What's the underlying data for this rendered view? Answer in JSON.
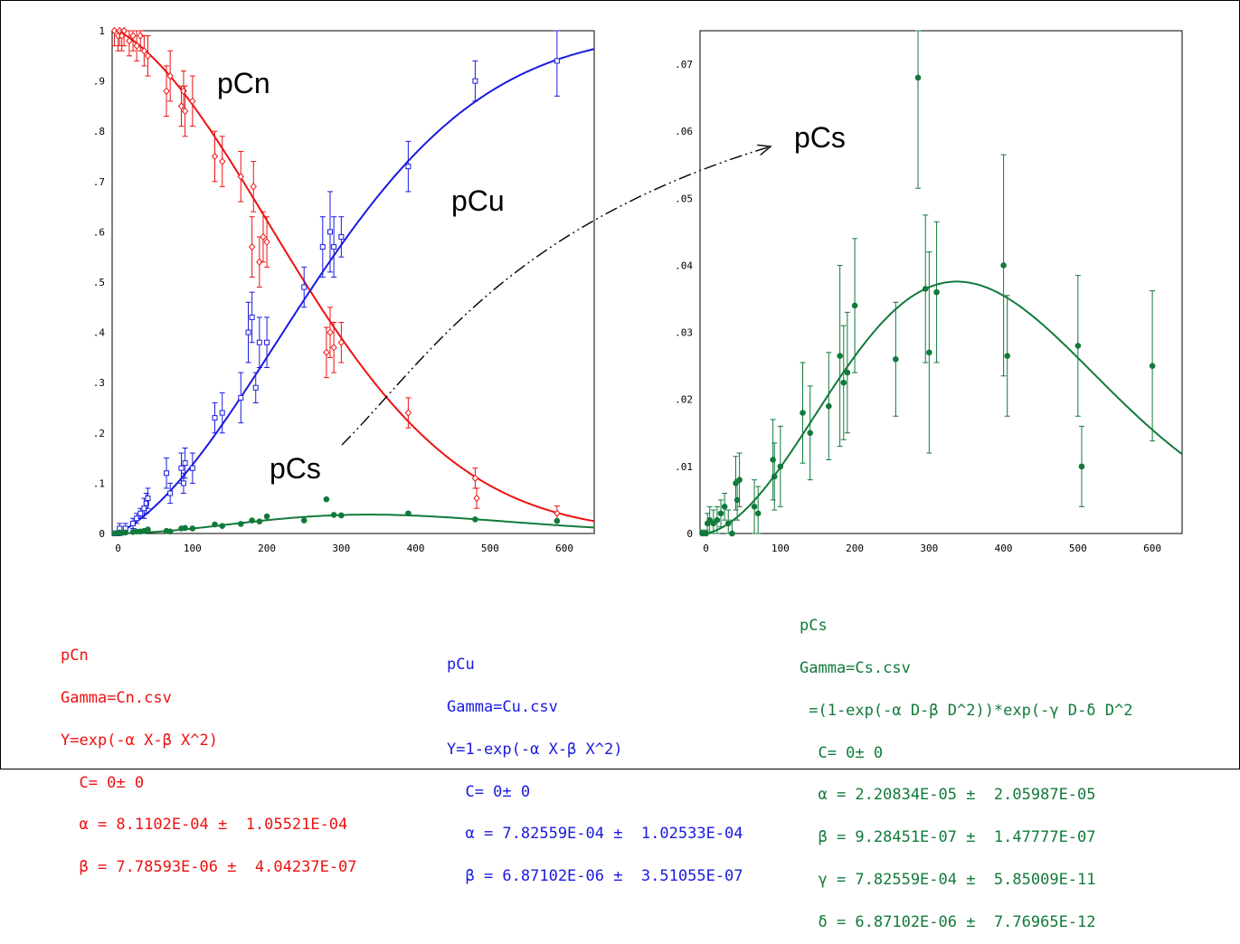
{
  "colors": {
    "pCn": "#ee1111",
    "pCu": "#1a1ae0",
    "pCs": "#117a3a",
    "arrow": "#000000"
  },
  "chart_data": [
    {
      "type": "scatter",
      "title": "",
      "xlim": [
        -8,
        640
      ],
      "ylim": [
        0,
        1
      ],
      "x_ticks": [
        "0",
        "100",
        "200",
        "300",
        "400",
        "500",
        "600"
      ],
      "y_ticks": [
        "0",
        ".1",
        ".2",
        ".3",
        ".4",
        ".5",
        ".6",
        ".7",
        ".8",
        ".9",
        "1"
      ],
      "annotations": [
        "pCn",
        "pCu",
        "pCs"
      ],
      "series": [
        {
          "name": "pCn",
          "marker": "open-diamond",
          "x": [
            -5,
            0,
            2,
            5,
            8,
            15,
            20,
            25,
            30,
            35,
            40,
            65,
            70,
            85,
            88,
            90,
            100,
            130,
            140,
            165,
            180,
            182,
            190,
            195,
            200,
            280,
            285,
            290,
            300,
            390,
            480,
            482,
            590
          ],
          "y": [
            1.0,
            0.99,
            1.0,
            0.99,
            1.0,
            0.98,
            0.99,
            0.97,
            0.99,
            0.96,
            0.95,
            0.88,
            0.91,
            0.85,
            0.88,
            0.84,
            0.86,
            0.75,
            0.74,
            0.71,
            0.57,
            0.69,
            0.54,
            0.59,
            0.58,
            0.36,
            0.4,
            0.37,
            0.38,
            0.24,
            0.11,
            0.07,
            0.04
          ],
          "err": [
            0.03,
            0.03,
            0.03,
            0.03,
            0.03,
            0.03,
            0.03,
            0.03,
            0.03,
            0.03,
            0.04,
            0.05,
            0.05,
            0.04,
            0.04,
            0.05,
            0.05,
            0.05,
            0.05,
            0.05,
            0.06,
            0.05,
            0.05,
            0.05,
            0.05,
            0.05,
            0.05,
            0.05,
            0.04,
            0.03,
            0.02,
            0.02,
            0.015
          ],
          "fit": "Y=exp(-αX-βX^2)",
          "alpha": 0.00081102,
          "beta": 7.78593e-06
        },
        {
          "name": "pCu",
          "marker": "open-square",
          "x": [
            -5,
            0,
            2,
            10,
            20,
            25,
            30,
            35,
            38,
            40,
            65,
            70,
            85,
            88,
            90,
            100,
            130,
            140,
            165,
            175,
            180,
            185,
            190,
            200,
            250,
            275,
            285,
            290,
            300,
            390,
            480,
            590
          ],
          "y": [
            0.0,
            0.0,
            0.01,
            0.01,
            0.02,
            0.03,
            0.04,
            0.05,
            0.06,
            0.07,
            0.12,
            0.08,
            0.13,
            0.1,
            0.14,
            0.13,
            0.23,
            0.24,
            0.27,
            0.4,
            0.43,
            0.29,
            0.38,
            0.38,
            0.49,
            0.57,
            0.6,
            0.57,
            0.59,
            0.73,
            0.9,
            0.94
          ],
          "err": [
            0.005,
            0.005,
            0.01,
            0.01,
            0.01,
            0.01,
            0.01,
            0.02,
            0.02,
            0.02,
            0.03,
            0.02,
            0.03,
            0.02,
            0.03,
            0.03,
            0.03,
            0.04,
            0.05,
            0.06,
            0.05,
            0.03,
            0.05,
            0.05,
            0.04,
            0.06,
            0.08,
            0.06,
            0.04,
            0.05,
            0.04,
            0.07
          ],
          "fit": "Y=1-exp(-αX-βX^2)",
          "alpha": 0.000782559,
          "beta": 6.87102e-06
        },
        {
          "name": "pCs",
          "marker": "filled-circle",
          "x": [
            -5,
            0,
            2,
            5,
            10,
            20,
            25,
            30,
            35,
            40,
            65,
            70,
            85,
            90,
            100,
            130,
            140,
            165,
            180,
            190,
            200,
            250,
            280,
            290,
            300,
            390,
            480,
            590
          ],
          "y": [
            0.0,
            0.001,
            0.002,
            0.001,
            0.002,
            0.003,
            0.004,
            0.004,
            0.005,
            0.008,
            0.005,
            0.004,
            0.01,
            0.011,
            0.01,
            0.018,
            0.015,
            0.019,
            0.026,
            0.024,
            0.034,
            0.026,
            0.068,
            0.037,
            0.036,
            0.04,
            0.028,
            0.025
          ],
          "fit": "Y=(1-exp(-αD-βD^2))*exp(-γD-δD^2)",
          "alpha": 2.20834e-05,
          "beta": 9.28451e-07,
          "gamma": 0.000782559,
          "delta": 6.87102e-06
        }
      ]
    },
    {
      "type": "scatter",
      "title": "",
      "xlim": [
        -8,
        640
      ],
      "ylim": [
        0,
        0.075
      ],
      "x_ticks": [
        "0",
        "100",
        "200",
        "300",
        "400",
        "500",
        "600"
      ],
      "y_ticks": [
        "0",
        ".01",
        ".02",
        ".03",
        ".04",
        ".05",
        ".06",
        ".07"
      ],
      "annotations": [
        "pCs"
      ],
      "series": [
        {
          "name": "pCs",
          "marker": "filled-circle",
          "x": [
            -5,
            0,
            2,
            5,
            10,
            15,
            20,
            25,
            30,
            35,
            40,
            42,
            45,
            65,
            70,
            90,
            92,
            100,
            130,
            140,
            165,
            180,
            185,
            190,
            200,
            255,
            285,
            295,
            300,
            310,
            400,
            405,
            500,
            505,
            600
          ],
          "y": [
            0.0,
            0.0,
            0.0015,
            0.002,
            0.0015,
            0.002,
            0.003,
            0.004,
            0.0015,
            0.0,
            0.0075,
            0.005,
            0.008,
            0.004,
            0.003,
            0.011,
            0.0085,
            0.01,
            0.018,
            0.015,
            0.019,
            0.0265,
            0.0225,
            0.024,
            0.034,
            0.026,
            0.068,
            0.0365,
            0.027,
            0.036,
            0.04,
            0.0265,
            0.028,
            0.01,
            0.025
          ],
          "err": [
            0.0005,
            0.0005,
            0.0015,
            0.002,
            0.002,
            0.002,
            0.002,
            0.002,
            0.002,
            0.002,
            0.004,
            0.003,
            0.004,
            0.004,
            0.004,
            0.006,
            0.005,
            0.006,
            0.0075,
            0.007,
            0.008,
            0.0135,
            0.0085,
            0.009,
            0.01,
            0.0085,
            0.0165,
            0.011,
            0.015,
            0.0105,
            0.0165,
            0.009,
            0.0105,
            0.006,
            0.0112
          ],
          "fit": "Y=(1-exp(-αD-βD^2))*exp(-γD-δD^2)"
        }
      ]
    }
  ],
  "equations": {
    "pCn": [
      "pCn",
      "Gamma=Cn.csv",
      "Y=exp(-α X-β X^2)",
      "  C= 0± 0",
      "  α = 8.1102E-04 ±  1.05521E-04",
      "  β = 7.78593E-06 ±  4.04237E-07"
    ],
    "pCu": [
      "pCu",
      "Gamma=Cu.csv",
      "Y=1-exp(-α X-β X^2)",
      "  C= 0± 0",
      "  α = 7.82559E-04 ±  1.02533E-04",
      "  β = 6.87102E-06 ±  3.51055E-07"
    ],
    "pCs": [
      "pCs",
      "Gamma=Cs.csv",
      " =(1-exp(-α D-β D^2))*exp(-γ D-δ D^2",
      "  C= 0± 0",
      "  α = 2.20834E-05 ±  2.05987E-05",
      "  β = 9.28451E-07 ±  1.47777E-07",
      "  γ = 7.82559E-04 ±  5.85009E-11",
      "  δ = 6.87102E-06 ±  7.76965E-12"
    ]
  }
}
